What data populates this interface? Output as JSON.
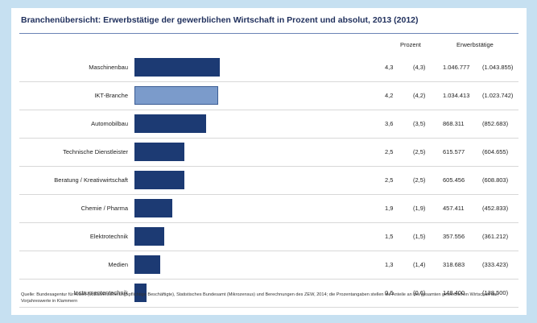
{
  "chart_data": {
    "type": "bar",
    "orientation": "horizontal",
    "title": "Branchenübersicht: Erwerbstätige der gewerblichen Wirtschaft in Prozent und absolut, 2013 (2012)",
    "column_headers": {
      "percent": "Prozent",
      "absolute": "Erwerbstätige"
    },
    "categories": [
      "Maschinenbau",
      "IKT-Branche",
      "Automobilbau",
      "Technische Dienstleister",
      "Beratung / Kreativwirtschaft",
      "Chemie / Pharma",
      "Elektrotechnik",
      "Medien",
      "Instrumententechnik"
    ],
    "percent_2013": [
      4.3,
      4.2,
      3.6,
      2.5,
      2.5,
      1.9,
      1.5,
      1.3,
      0.6
    ],
    "rows": [
      {
        "label": "Maschinenbau",
        "pct": "4,3",
        "pct_prev": "(4,3)",
        "abs": "1.046.777",
        "abs_prev": "(1.043.855)"
      },
      {
        "label": "IKT-Branche",
        "pct": "4,2",
        "pct_prev": "(4,2)",
        "abs": "1.034.413",
        "abs_prev": "(1.023.742)"
      },
      {
        "label": "Automobilbau",
        "pct": "3,6",
        "pct_prev": "(3,5)",
        "abs": "868.311",
        "abs_prev": "(852.683)"
      },
      {
        "label": "Technische Dienstleister",
        "pct": "2,5",
        "pct_prev": "(2,5)",
        "abs": "615.577",
        "abs_prev": "(604.655)"
      },
      {
        "label": "Beratung / Kreativwirtschaft",
        "pct": "2,5",
        "pct_prev": "(2,5)",
        "abs": "605.456",
        "abs_prev": "(608.803)"
      },
      {
        "label": "Chemie / Pharma",
        "pct": "1,9",
        "pct_prev": "(1,9)",
        "abs": "457.411",
        "abs_prev": "(452.833)"
      },
      {
        "label": "Elektrotechnik",
        "pct": "1,5",
        "pct_prev": "(1,5)",
        "abs": "357.556",
        "abs_prev": "(361.212)"
      },
      {
        "label": "Medien",
        "pct": "1,3",
        "pct_prev": "(1,4)",
        "abs": "318.683",
        "abs_prev": "(333.423)"
      },
      {
        "label": "Instrumententechnik",
        "pct": "0,6",
        "pct_prev": "(0,6)",
        "abs": "148.400",
        "abs_prev": "(138.500)"
      }
    ],
    "highlight_category": "IKT-Branche",
    "xlim": [
      0,
      4.3
    ],
    "grid": false,
    "colors": {
      "bar": "#1c3a73",
      "bar_highlight": "#7b9bcb",
      "frame": "#c6e0f1"
    },
    "footnote": "Quelle: Bundesagentur für Arbeit (sozialversicherungspflichtige Beschäftigte), Statistisches Bundesamt (Mikrozensus) und Berechnungen des ZEW, 2014; die Prozentangaben stellen die Anteile an der gesamten gewerblichen Wirtschaft dar; Vorjahreswerte in Klammern"
  }
}
